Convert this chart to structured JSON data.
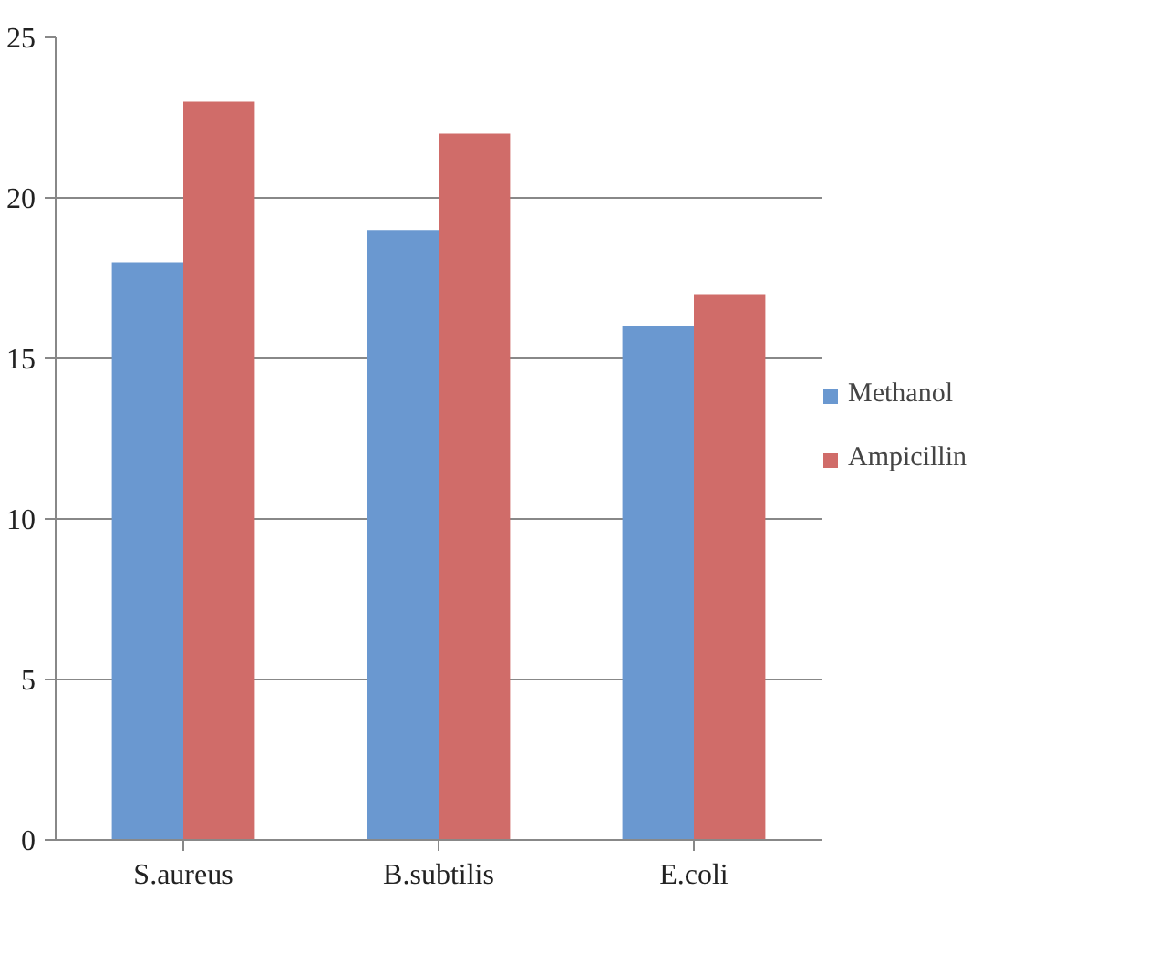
{
  "chart_data": {
    "type": "bar",
    "categories": [
      "S.aureus",
      "B.subtilis",
      "E.coli"
    ],
    "series": [
      {
        "name": "Methanol",
        "color": "#6a98d0",
        "values": [
          18,
          19,
          16
        ]
      },
      {
        "name": "Ampicillin",
        "color": "#d06c69",
        "values": [
          23,
          22,
          17
        ]
      }
    ],
    "ylim": [
      0,
      25
    ],
    "yticks": [
      0,
      5,
      10,
      15,
      20,
      25
    ],
    "grid": "y",
    "legend": "right"
  }
}
